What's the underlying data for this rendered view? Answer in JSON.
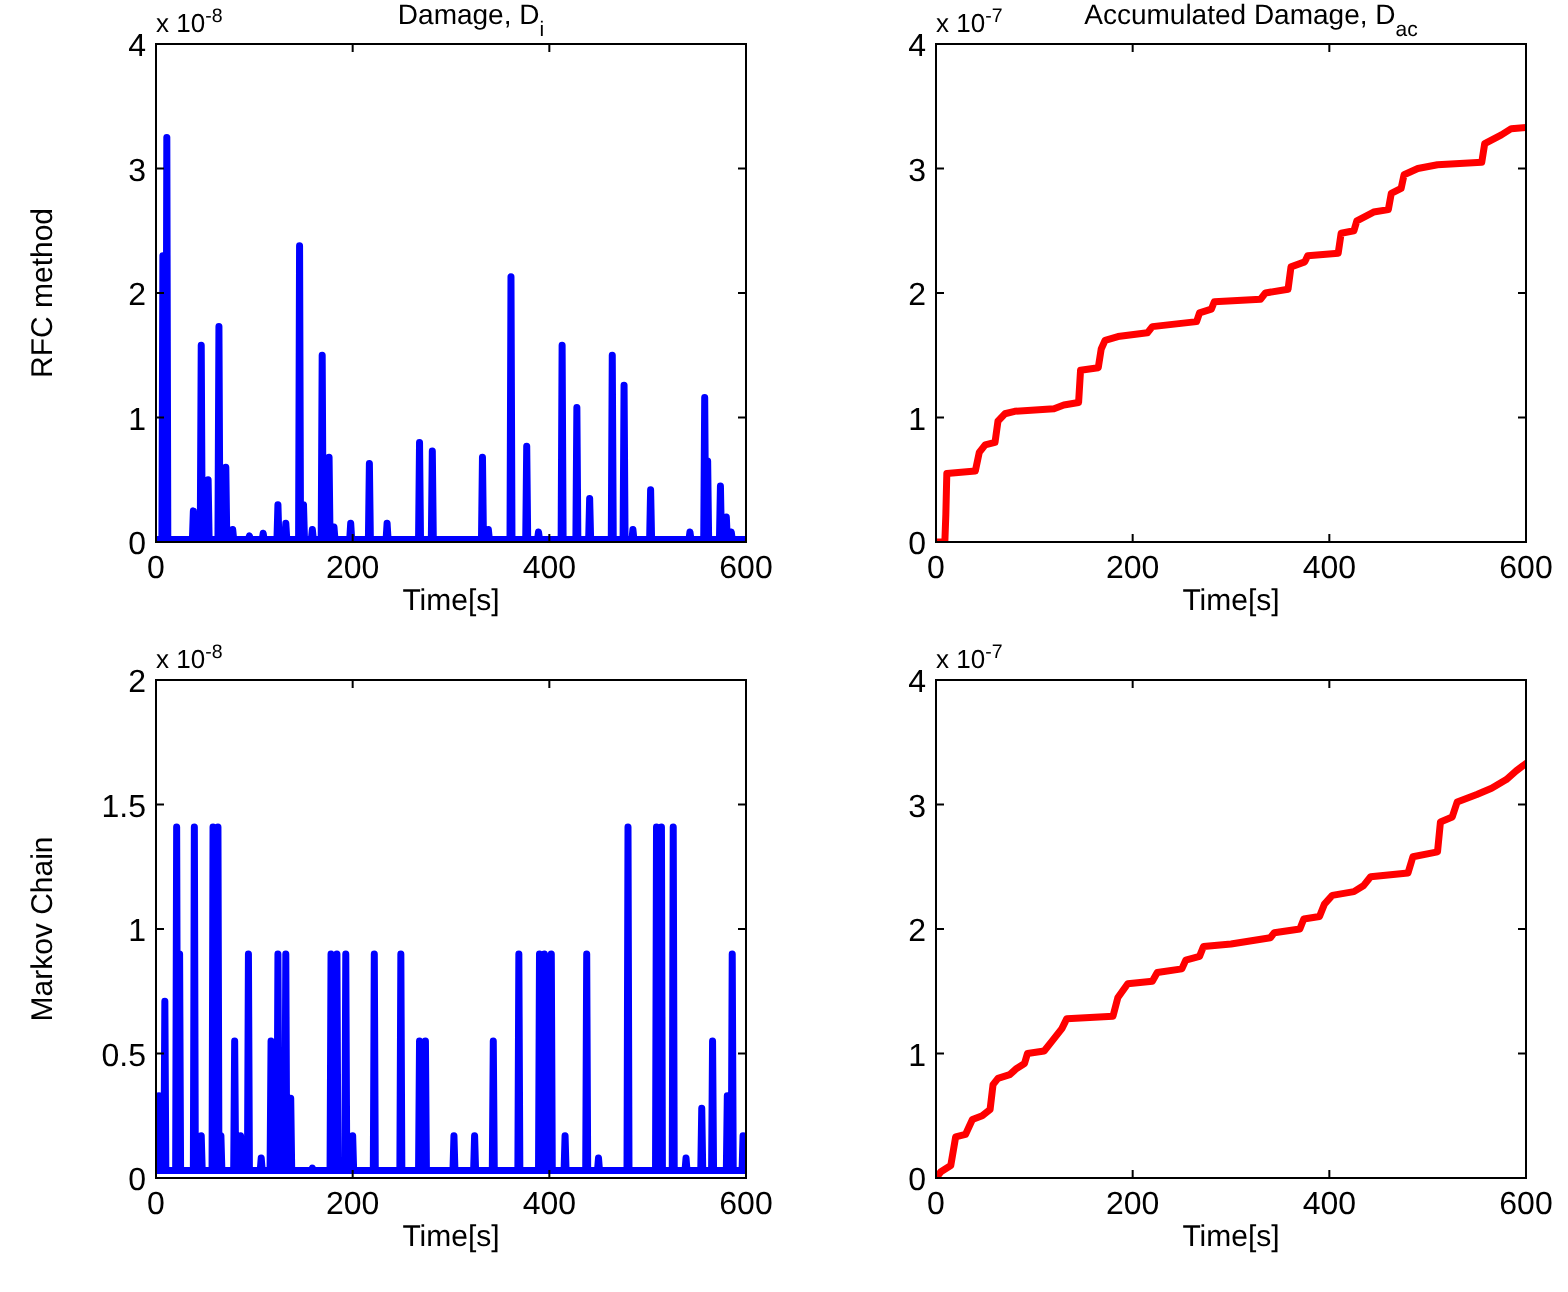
{
  "chart_data": [
    {
      "type": "line",
      "title": "Damage, D$_{i}$",
      "ylabel": "RFC method",
      "xlabel": "Time[s]",
      "xlim": [
        0,
        600
      ],
      "ylim": [
        0,
        4
      ],
      "xticks": [
        0,
        200,
        400,
        600
      ],
      "yticks": [
        0,
        1,
        2,
        3,
        4
      ],
      "annotations": [
        "x 10$^{-8}$"
      ],
      "x": [
        0,
        6,
        7,
        8,
        10,
        11,
        12,
        37,
        38,
        39,
        45,
        46,
        47,
        52,
        53,
        54,
        63,
        64,
        65,
        70,
        71,
        72,
        77,
        78,
        79,
        94,
        95,
        96,
        108,
        109,
        110,
        123,
        124,
        125,
        131,
        132,
        133,
        145,
        146,
        147,
        149,
        150,
        151,
        158,
        159,
        160,
        168,
        169,
        170,
        175,
        176,
        177,
        180,
        181,
        182,
        197,
        198,
        199,
        216,
        217,
        218,
        234,
        235,
        236,
        267,
        268,
        269,
        280,
        281,
        282,
        331,
        332,
        333,
        337,
        338,
        339,
        360,
        361,
        362,
        376,
        377,
        378,
        388,
        389,
        390,
        412,
        413,
        414,
        427,
        428,
        429,
        440,
        441,
        442,
        463,
        464,
        465,
        475,
        476,
        477,
        484,
        485,
        486,
        502,
        503,
        504,
        542,
        543,
        544,
        557,
        558,
        559,
        560,
        561,
        562,
        573,
        574,
        575,
        579,
        580,
        581,
        584,
        585,
        586,
        600
      ],
      "series": [
        {
          "color": "#0000ff",
          "values": [
            0.02,
            0.02,
            2.3,
            0.02,
            0.02,
            3.25,
            0.02,
            0.02,
            0.25,
            0.02,
            0.02,
            1.58,
            0.02,
            0.02,
            0.5,
            0.02,
            0.02,
            1.73,
            0.02,
            0.02,
            0.6,
            0.02,
            0.02,
            0.1,
            0.02,
            0.02,
            0.05,
            0.02,
            0.02,
            0.07,
            0.02,
            0.02,
            0.3,
            0.02,
            0.02,
            0.15,
            0.02,
            0.02,
            2.38,
            0.02,
            0.02,
            0.3,
            0.02,
            0.02,
            0.1,
            0.02,
            0.02,
            1.5,
            0.02,
            0.02,
            0.68,
            0.02,
            0.02,
            0.12,
            0.02,
            0.02,
            0.15,
            0.02,
            0.02,
            0.63,
            0.02,
            0.02,
            0.15,
            0.02,
            0.02,
            0.8,
            0.02,
            0.02,
            0.73,
            0.02,
            0.02,
            0.68,
            0.02,
            0.02,
            0.1,
            0.02,
            0.02,
            2.13,
            0.02,
            0.02,
            0.77,
            0.02,
            0.02,
            0.08,
            0.02,
            0.02,
            1.58,
            0.02,
            0.02,
            1.08,
            0.02,
            0.02,
            0.35,
            0.02,
            0.02,
            1.5,
            0.02,
            0.02,
            1.26,
            0.02,
            0.02,
            0.1,
            0.02,
            0.02,
            0.42,
            0.02,
            0.02,
            0.08,
            0.02,
            0.02,
            1.16,
            0.02,
            0.02,
            0.65,
            0.02,
            0.02,
            0.45,
            0.02,
            0.02,
            0.2,
            0.02,
            0.02,
            0.08,
            0.02,
            0.02
          ]
        }
      ]
    },
    {
      "type": "line",
      "title": "Accumulated Damage, D$_{ac}$",
      "xlabel": "Time[s]",
      "xlim": [
        0,
        600
      ],
      "ylim": [
        0,
        4
      ],
      "xticks": [
        0,
        200,
        400,
        600
      ],
      "yticks": [
        0,
        1,
        2,
        3,
        4
      ],
      "annotations": [
        "x 10$^{-7}$"
      ],
      "x": [
        0,
        9,
        10,
        11,
        40,
        44,
        50,
        60,
        63,
        70,
        80,
        120,
        130,
        145,
        147,
        165,
        168,
        172,
        185,
        215,
        220,
        265,
        268,
        280,
        283,
        330,
        335,
        358,
        361,
        375,
        378,
        409,
        412,
        425,
        428,
        445,
        460,
        463,
        473,
        476,
        490,
        510,
        555,
        558,
        575,
        585,
        600
      ],
      "series": [
        {
          "color": "#ff0000",
          "values": [
            0,
            0,
            0.22,
            0.55,
            0.57,
            0.72,
            0.78,
            0.8,
            0.97,
            1.03,
            1.05,
            1.07,
            1.1,
            1.12,
            1.38,
            1.4,
            1.55,
            1.62,
            1.65,
            1.68,
            1.73,
            1.77,
            1.84,
            1.87,
            1.93,
            1.95,
            2.0,
            2.03,
            2.21,
            2.25,
            2.3,
            2.32,
            2.48,
            2.5,
            2.58,
            2.65,
            2.67,
            2.8,
            2.84,
            2.95,
            3.0,
            3.03,
            3.05,
            3.2,
            3.27,
            3.32,
            3.33
          ]
        }
      ]
    },
    {
      "type": "line",
      "ylabel": "Markov Chain",
      "xlabel": "Time[s]",
      "xlim": [
        0,
        600
      ],
      "ylim": [
        0,
        2
      ],
      "xticks": [
        0,
        200,
        400,
        600
      ],
      "yticks": [
        0,
        0.5,
        1,
        1.5,
        2
      ],
      "annotations": [
        "x 10$^{-8}$"
      ],
      "x": [
        0,
        2,
        3,
        4,
        8,
        9,
        10,
        20,
        21,
        22,
        23,
        24,
        25,
        38,
        39,
        40,
        45,
        46,
        47,
        57,
        58,
        59,
        62,
        63,
        64,
        65,
        66,
        67,
        79,
        80,
        81,
        85,
        86,
        87,
        93,
        94,
        95,
        106,
        107,
        108,
        116,
        117,
        118,
        123,
        124,
        125,
        131,
        132,
        133,
        136,
        137,
        138,
        158,
        159,
        160,
        177,
        178,
        179,
        183,
        184,
        185,
        192,
        193,
        194,
        199,
        200,
        201,
        221,
        222,
        223,
        248,
        249,
        250,
        267,
        268,
        269,
        273,
        274,
        275,
        284,
        285,
        286,
        302,
        303,
        304,
        323,
        324,
        325,
        342,
        343,
        344,
        368,
        369,
        370,
        389,
        390,
        391,
        394,
        395,
        396,
        401,
        402,
        403,
        415,
        416,
        417,
        437,
        438,
        439,
        449,
        450,
        451,
        479,
        480,
        481,
        504,
        505,
        506,
        508,
        509,
        510,
        513,
        514,
        515,
        525,
        526,
        527,
        538,
        539,
        540,
        554,
        555,
        556,
        565,
        566,
        567,
        580,
        581,
        582,
        585,
        586,
        587,
        596,
        597,
        598,
        600
      ],
      "series": [
        {
          "color": "#0000ff",
          "values": [
            0.03,
            0.03,
            0.33,
            0.03,
            0.03,
            0.71,
            0.03,
            0.03,
            1.41,
            0.03,
            0.03,
            0.9,
            0.03,
            0.03,
            1.41,
            0.03,
            0.03,
            0.17,
            0.03,
            0.03,
            1.41,
            0.03,
            0.03,
            1.41,
            0.03,
            0.03,
            0.17,
            0.03,
            0.03,
            0.55,
            0.03,
            0.03,
            0.17,
            0.03,
            0.03,
            0.9,
            0.03,
            0.03,
            0.08,
            0.03,
            0.03,
            0.55,
            0.03,
            0.03,
            0.9,
            0.03,
            0.03,
            0.9,
            0.03,
            0.03,
            0.32,
            0.03,
            0.03,
            0.04,
            0.03,
            0.03,
            0.9,
            0.03,
            0.03,
            0.9,
            0.03,
            0.03,
            0.9,
            0.03,
            0.03,
            0.17,
            0.03,
            0.03,
            0.9,
            0.03,
            0.03,
            0.9,
            0.03,
            0.03,
            0.55,
            0.03,
            0.03,
            0.55,
            0.03,
            0.03,
            0.03,
            0.03,
            0.03,
            0.17,
            0.03,
            0.03,
            0.17,
            0.03,
            0.03,
            0.55,
            0.03,
            0.03,
            0.9,
            0.03,
            0.03,
            0.9,
            0.03,
            0.03,
            0.9,
            0.03,
            0.03,
            0.9,
            0.03,
            0.03,
            0.17,
            0.03,
            0.03,
            0.9,
            0.03,
            0.03,
            0.08,
            0.03,
            0.03,
            1.41,
            0.03,
            0.03,
            0.03,
            0.03,
            0.03,
            1.41,
            0.03,
            0.03,
            1.41,
            0.03,
            0.03,
            1.41,
            0.03,
            0.03,
            0.08,
            0.03,
            0.03,
            0.28,
            0.03,
            0.03,
            0.55,
            0.03,
            0.03,
            0.33,
            0.03,
            0.03,
            0.9,
            0.03,
            0.03,
            0.17,
            0.03,
            0.03
          ]
        }
      ]
    },
    {
      "type": "line",
      "xlabel": "Time[s]",
      "xlim": [
        0,
        600
      ],
      "ylim": [
        0,
        4
      ],
      "xticks": [
        0,
        200,
        400,
        600
      ],
      "yticks": [
        0,
        1,
        2,
        3,
        4
      ],
      "annotations": [
        "x 10$^{-7}$"
      ],
      "x": [
        0,
        5,
        15,
        20,
        30,
        37,
        47,
        55,
        58,
        63,
        75,
        82,
        90,
        93,
        110,
        118,
        128,
        133,
        180,
        185,
        195,
        220,
        225,
        250,
        254,
        268,
        272,
        300,
        340,
        344,
        370,
        374,
        390,
        395,
        403,
        425,
        435,
        442,
        480,
        485,
        510,
        513,
        525,
        530,
        550,
        565,
        580,
        590,
        600
      ],
      "series": [
        {
          "color": "#ff0000",
          "values": [
            0,
            0.05,
            0.1,
            0.33,
            0.35,
            0.47,
            0.5,
            0.55,
            0.75,
            0.8,
            0.83,
            0.88,
            0.92,
            1.0,
            1.02,
            1.1,
            1.2,
            1.28,
            1.3,
            1.45,
            1.56,
            1.58,
            1.65,
            1.68,
            1.75,
            1.78,
            1.86,
            1.88,
            1.93,
            1.97,
            2.0,
            2.08,
            2.1,
            2.2,
            2.27,
            2.3,
            2.35,
            2.42,
            2.45,
            2.58,
            2.62,
            2.86,
            2.9,
            3.02,
            3.08,
            3.13,
            3.2,
            3.27,
            3.33
          ]
        }
      ]
    }
  ]
}
